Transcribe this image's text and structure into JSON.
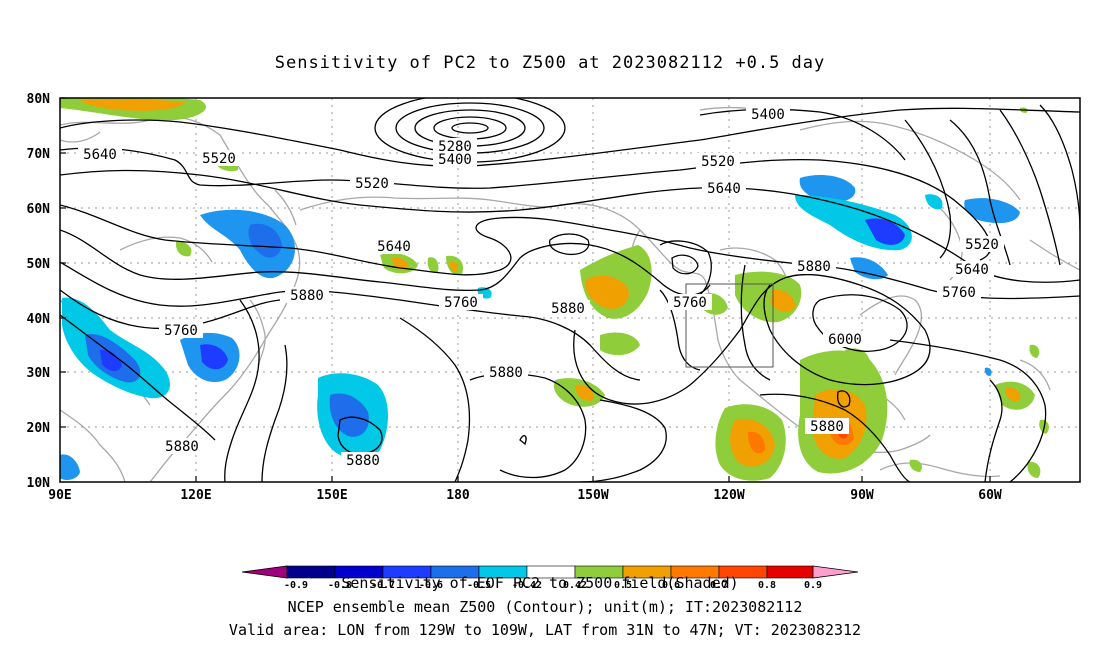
{
  "title": "Sensitivity of PC2 to Z500 at 2023082112 +0.5 day",
  "lat_labels": [
    "80N",
    "70N",
    "60N",
    "50N",
    "40N",
    "30N",
    "20N",
    "10N"
  ],
  "lon_labels": [
    "90E",
    "120E",
    "150E",
    "180",
    "150W",
    "120W",
    "90W",
    "60W"
  ],
  "contour_labels": [
    {
      "text": "5640"
    },
    {
      "text": "5520"
    },
    {
      "text": "5520"
    },
    {
      "text": "5280"
    },
    {
      "text": "5400"
    },
    {
      "text": "5400"
    },
    {
      "text": "5520"
    },
    {
      "text": "5640"
    },
    {
      "text": "5640"
    },
    {
      "text": "5760"
    },
    {
      "text": "5880"
    },
    {
      "text": "5760"
    },
    {
      "text": "5880"
    },
    {
      "text": "5880"
    },
    {
      "text": "5760"
    },
    {
      "text": "5880"
    },
    {
      "text": "6000"
    },
    {
      "text": "5520"
    },
    {
      "text": "5640"
    },
    {
      "text": "5760"
    },
    {
      "text": "5880"
    },
    {
      "text": "5880"
    },
    {
      "text": "5880"
    }
  ],
  "colorbar": {
    "tick_labels": [
      "-0.9",
      "-0.8",
      "-0.7",
      "-0.6",
      "-0.5",
      "-0.42",
      "0.42",
      "0.5",
      "0.6",
      "0.7",
      "0.8",
      "0.9"
    ],
    "colors": [
      "#a0007f",
      "#00008b",
      "#0000cd",
      "#1e3cff",
      "#1e6eeb",
      "#1e96f0",
      "#00c8e6",
      "#ffffff",
      "#8fce3a",
      "#f0a000",
      "#ff7800",
      "#ff4500",
      "#e60000",
      "#ff9fd0"
    ]
  },
  "footer": {
    "line1": "Sensitivity of EOF PC2 to Z500 field(Shaded)",
    "line2": "NCEP ensemble mean Z500 (Contour); unit(m); IT:2023082112",
    "line3": "Valid area: LON from 129W to 109W, LAT from 31N to 47N; VT: 2023082312"
  }
}
